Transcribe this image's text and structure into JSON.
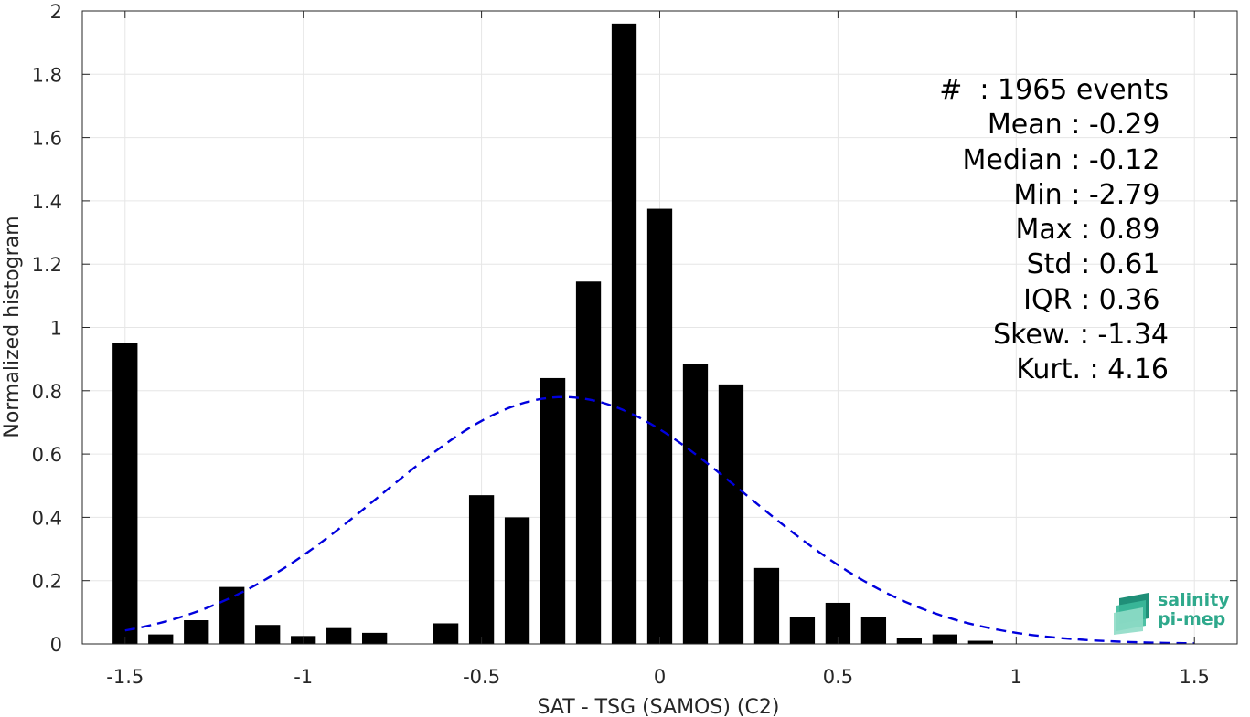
{
  "chart_data": {
    "type": "bar",
    "xlabel": "SAT - TSG (SAMOS) (C2)",
    "ylabel": "Normalized histogram",
    "xlim": [
      -1.62,
      1.62
    ],
    "ylim": [
      0,
      2
    ],
    "xticks": [
      -1.5,
      -1,
      -0.5,
      0,
      0.5,
      1,
      1.5
    ],
    "xtick_labels": [
      "-1.5",
      "-1",
      "-0.5",
      "0",
      "0.5",
      "1",
      "1.5"
    ],
    "yticks": [
      0,
      0.2,
      0.4,
      0.6,
      0.8,
      1,
      1.2,
      1.4,
      1.6,
      1.8,
      2
    ],
    "ytick_labels": [
      "0",
      "0.2",
      "0.4",
      "0.6",
      "0.8",
      "1",
      "1.2",
      "1.4",
      "1.6",
      "1.8",
      "2"
    ],
    "grid": true,
    "bar_width": 0.07,
    "bar_color": "#000000",
    "bins": [
      {
        "x": -1.5,
        "y": 0.95
      },
      {
        "x": -1.4,
        "y": 0.03
      },
      {
        "x": -1.3,
        "y": 0.075
      },
      {
        "x": -1.2,
        "y": 0.18
      },
      {
        "x": -1.1,
        "y": 0.06
      },
      {
        "x": -1.0,
        "y": 0.025
      },
      {
        "x": -0.9,
        "y": 0.05
      },
      {
        "x": -0.8,
        "y": 0.035
      },
      {
        "x": -0.7,
        "y": 0.0
      },
      {
        "x": -0.6,
        "y": 0.065
      },
      {
        "x": -0.5,
        "y": 0.47
      },
      {
        "x": -0.4,
        "y": 0.4
      },
      {
        "x": -0.3,
        "y": 0.84
      },
      {
        "x": -0.2,
        "y": 1.145
      },
      {
        "x": -0.1,
        "y": 1.96
      },
      {
        "x": 0.0,
        "y": 1.375
      },
      {
        "x": 0.1,
        "y": 0.885
      },
      {
        "x": 0.2,
        "y": 0.82
      },
      {
        "x": 0.3,
        "y": 0.24
      },
      {
        "x": 0.4,
        "y": 0.085
      },
      {
        "x": 0.5,
        "y": 0.13
      },
      {
        "x": 0.6,
        "y": 0.085
      },
      {
        "x": 0.7,
        "y": 0.02
      },
      {
        "x": 0.8,
        "y": 0.03
      },
      {
        "x": 0.9,
        "y": 0.01
      }
    ],
    "fit": {
      "type": "gaussian",
      "mean": -0.27,
      "std": 0.51,
      "peak": 0.78,
      "x_range": [
        -1.5,
        1.5
      ],
      "color": "#0000dd",
      "style": "dashed"
    }
  },
  "stats": [
    "#  : 1965 events",
    "Mean : -0.29 ",
    "Median : -0.12 ",
    "Min : -2.79 ",
    "Max : 0.89 ",
    "Std : 0.61 ",
    "IQR : 0.36 ",
    "Skew. : -1.34",
    "Kurt. : 4.16"
  ],
  "logo": {
    "line1": "salinity",
    "line2": "pi-mep",
    "color": "#2fa98c"
  }
}
